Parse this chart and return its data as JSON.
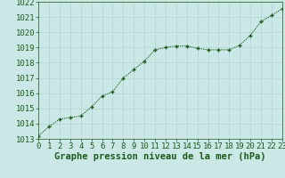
{
  "x": [
    0,
    1,
    2,
    3,
    4,
    5,
    6,
    7,
    8,
    9,
    10,
    11,
    12,
    13,
    14,
    15,
    16,
    17,
    18,
    19,
    20,
    21,
    22,
    23
  ],
  "y": [
    1013.2,
    1013.8,
    1014.3,
    1014.4,
    1014.5,
    1015.1,
    1015.8,
    1016.1,
    1017.0,
    1017.55,
    1018.1,
    1018.85,
    1019.0,
    1019.1,
    1019.1,
    1018.95,
    1018.85,
    1018.85,
    1018.85,
    1019.15,
    1019.8,
    1020.7,
    1021.1,
    1021.55
  ],
  "ylim": [
    1013,
    1022
  ],
  "yticks": [
    1013,
    1014,
    1015,
    1016,
    1017,
    1018,
    1019,
    1020,
    1021,
    1022
  ],
  "xlim": [
    0,
    23
  ],
  "xticks": [
    0,
    1,
    2,
    3,
    4,
    5,
    6,
    7,
    8,
    9,
    10,
    11,
    12,
    13,
    14,
    15,
    16,
    17,
    18,
    19,
    20,
    21,
    22,
    23
  ],
  "xlabel": "Graphe pression niveau de la mer (hPa)",
  "line_color": "#1a5c1a",
  "marker": "+",
  "bg_color": "#cce8e6",
  "grid_color": "#b0d4d2",
  "tick_label_color": "#1a5c1a",
  "xlabel_color": "#1a5c1a",
  "xlabel_fontsize": 7.5,
  "tick_fontsize": 6.5
}
